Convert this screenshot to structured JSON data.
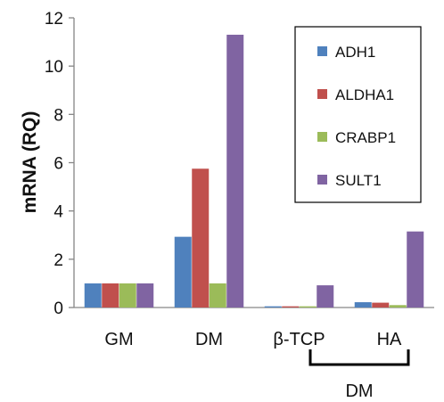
{
  "chart_data": {
    "type": "bar",
    "ylabel": "mRNA (RQ)",
    "xlabel": "",
    "ylim": [
      0,
      12
    ],
    "yticks": [
      "0",
      "2",
      "4",
      "6",
      "8",
      "10",
      "12"
    ],
    "categories": [
      "GM",
      "DM",
      "β-TCP",
      "HA"
    ],
    "group_bracket_label": "DM",
    "grid": false,
    "legend_position": "top-right",
    "series": [
      {
        "name": "ADH1",
        "color": "#4f81bd",
        "values": [
          1.0,
          2.93,
          0.05,
          0.22
        ]
      },
      {
        "name": "ALDHA1",
        "color": "#c0504d",
        "values": [
          1.0,
          5.75,
          0.05,
          0.2
        ]
      },
      {
        "name": "CRABP1",
        "color": "#9bbb59",
        "values": [
          1.0,
          1.0,
          0.05,
          0.1
        ]
      },
      {
        "name": "SULT1",
        "color": "#8064a2",
        "values": [
          1.0,
          11.3,
          0.92,
          3.15
        ]
      }
    ]
  }
}
